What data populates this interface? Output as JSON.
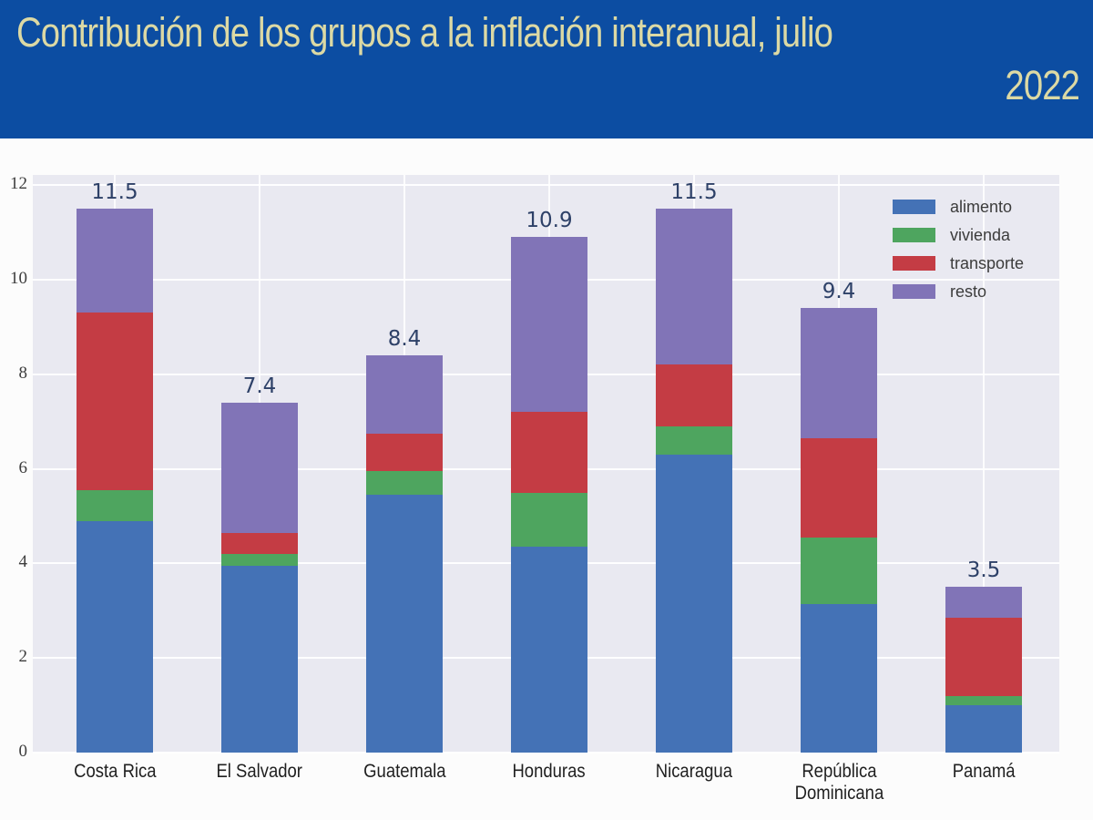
{
  "header": {
    "title_line1": "Contribución de los grupos a la inflación interanual, julio",
    "title_line2": "2022",
    "background_color": "#0C4DA2",
    "text_color": "#DCD9A4"
  },
  "chart_data": {
    "type": "bar",
    "stacked": true,
    "title": "Contribución de los grupos a la inflación interanual, julio 2022",
    "categories": [
      "Costa Rica",
      "El Salvador",
      "Guatemala",
      "Honduras",
      "Nicaragua",
      "República\nDominicana",
      "Panamá"
    ],
    "series": [
      {
        "name": "alimento",
        "color": "#4472B6",
        "values": [
          4.9,
          3.95,
          5.45,
          4.35,
          6.3,
          3.15,
          1.0
        ]
      },
      {
        "name": "vivienda",
        "color": "#4EA55F",
        "values": [
          0.65,
          0.25,
          0.5,
          1.15,
          0.6,
          1.4,
          0.2
        ]
      },
      {
        "name": "transporte",
        "color": "#C43C44",
        "values": [
          3.75,
          0.45,
          0.8,
          1.7,
          1.3,
          2.1,
          1.65
        ]
      },
      {
        "name": "resto",
        "color": "#8174B7",
        "values": [
          2.2,
          2.75,
          1.65,
          3.7,
          3.3,
          2.75,
          0.65
        ]
      }
    ],
    "totals": [
      11.5,
      7.4,
      8.4,
      10.9,
      11.5,
      9.4,
      3.5
    ],
    "y_ticks": [
      0,
      2,
      4,
      6,
      8,
      10,
      12
    ],
    "ylim": [
      0,
      12.2
    ],
    "xlabel": "",
    "ylabel": "",
    "grid": true,
    "legend_position": "upper right",
    "plot_background": "#E9E9F1",
    "total_label_color": "#2E4168"
  }
}
